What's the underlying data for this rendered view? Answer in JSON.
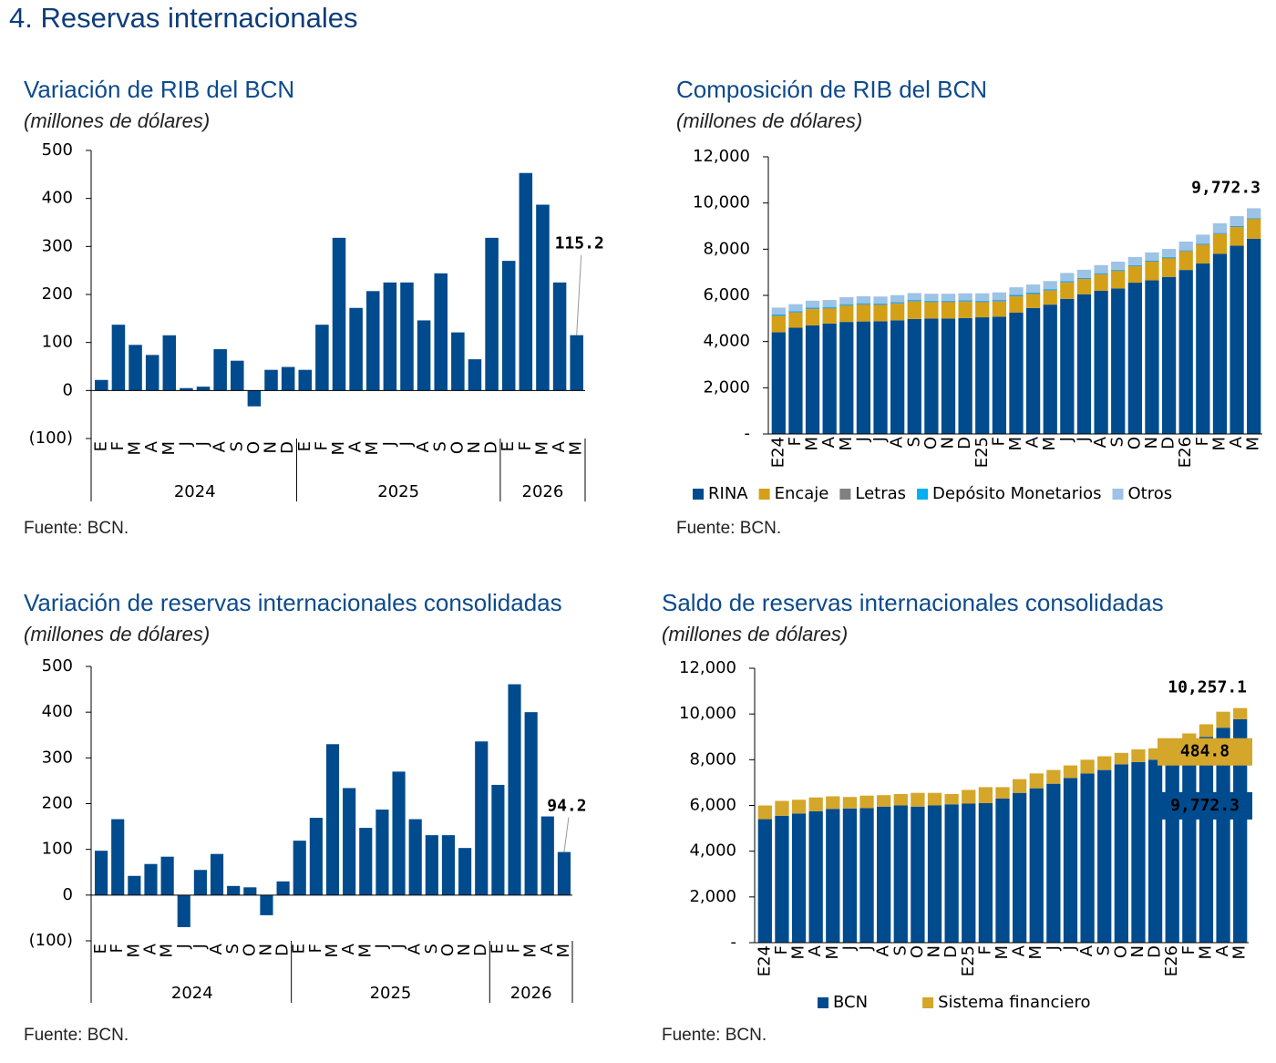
{
  "page_title": "4.  Reservas internacionales",
  "chart_data": [
    {
      "type": "bar",
      "title": "Variación de RIB del BCN",
      "subtitle": "(millones de dólares)",
      "source": "Fuente: BCN.",
      "categories": [
        "E",
        "F",
        "M",
        "A",
        "M",
        "J",
        "J",
        "A",
        "S",
        "O",
        "N",
        "D",
        "E",
        "F",
        "M",
        "A",
        "M",
        "J",
        "J",
        "A",
        "S",
        "O",
        "N",
        "D",
        "E",
        "F",
        "M",
        "A",
        "M"
      ],
      "groups": [
        {
          "label": "2024",
          "size": 12
        },
        {
          "label": "2025",
          "size": 12
        },
        {
          "label": "2026",
          "size": 5
        }
      ],
      "values": [
        22,
        137,
        95,
        74,
        115,
        5,
        8,
        86,
        62,
        -33,
        43,
        49,
        43,
        137,
        318,
        172,
        207,
        225,
        225,
        146,
        244,
        121,
        65,
        318,
        270,
        453,
        387,
        225,
        115.2
      ],
      "value_labels": [
        null,
        null,
        null,
        null,
        null,
        null,
        null,
        null,
        null,
        null,
        null,
        null,
        null,
        null,
        null,
        null,
        null,
        null,
        null,
        null,
        null,
        null,
        null,
        null,
        null,
        null,
        null,
        null,
        "115.2"
      ],
      "color": "#004b8d",
      "ylim": [
        -100,
        500
      ],
      "yticks": [
        {
          "value": -100,
          "label": "(100)"
        },
        0,
        100,
        200,
        300,
        400,
        500
      ]
    },
    {
      "type": "stacked_bar",
      "title": "Composición de RIB del BCN",
      "subtitle": "(millones de dólares)",
      "source": "Fuente: BCN.",
      "categories": [
        "E24",
        "F",
        "M",
        "A",
        "M",
        "J",
        "J",
        "A",
        "S",
        "O",
        "N",
        "D",
        "E25",
        "F",
        "M",
        "A",
        "M",
        "J",
        "J",
        "A",
        "S",
        "O",
        "N",
        "D",
        "E26",
        "F",
        "M",
        "A",
        "M"
      ],
      "series": [
        {
          "name": "RINA",
          "color": "#004b8d",
          "values": [
            4400,
            4600,
            4700,
            4780,
            4850,
            4870,
            4880,
            4920,
            4980,
            5000,
            5000,
            5020,
            5050,
            5080,
            5250,
            5450,
            5600,
            5850,
            6050,
            6200,
            6300,
            6550,
            6650,
            6800,
            7100,
            7380,
            7800,
            8150,
            8450
          ]
        },
        {
          "name": "Encaje",
          "color": "#d4a017",
          "values": [
            700,
            650,
            700,
            650,
            700,
            720,
            700,
            720,
            750,
            700,
            700,
            700,
            650,
            650,
            700,
            600,
            600,
            700,
            650,
            700,
            750,
            700,
            800,
            800,
            800,
            800,
            850,
            800,
            850
          ]
        },
        {
          "name": "Letras",
          "color": "#808080",
          "values": [
            30,
            30,
            30,
            30,
            30,
            30,
            30,
            30,
            30,
            30,
            30,
            30,
            30,
            30,
            30,
            30,
            30,
            30,
            30,
            30,
            30,
            30,
            30,
            30,
            30,
            30,
            30,
            30,
            30
          ]
        },
        {
          "name": "Depósito Monetarios",
          "color": "#00b0f0",
          "values": [
            40,
            40,
            40,
            40,
            40,
            40,
            40,
            40,
            40,
            40,
            40,
            40,
            40,
            40,
            40,
            40,
            40,
            40,
            30,
            30,
            30,
            30,
            30,
            30,
            20,
            20,
            20,
            20,
            20
          ]
        },
        {
          "name": "Otros",
          "color": "#9dc3e6",
          "values": [
            300,
            300,
            300,
            300,
            300,
            300,
            300,
            300,
            300,
            300,
            300,
            300,
            320,
            330,
            330,
            350,
            350,
            350,
            350,
            350,
            350,
            350,
            350,
            350,
            380,
            400,
            420,
            430,
            422.3
          ]
        }
      ],
      "total_label": "9,772.3",
      "ylim": [
        0,
        12000
      ],
      "yticks": [
        {
          "value": 0,
          "label": "-"
        },
        {
          "value": 2000,
          "label": "2,000"
        },
        {
          "value": 4000,
          "label": "4,000"
        },
        {
          "value": 6000,
          "label": "6,000"
        },
        {
          "value": 8000,
          "label": "8,000"
        },
        {
          "value": 10000,
          "label": "10,000"
        },
        {
          "value": 12000,
          "label": "12,000"
        }
      ]
    },
    {
      "type": "bar",
      "title": "Variación de reservas internacionales consolidadas",
      "subtitle": "(millones de dólares)",
      "source": "Fuente: BCN.",
      "categories": [
        "E",
        "F",
        "M",
        "A",
        "M",
        "J",
        "J",
        "A",
        "S",
        "O",
        "N",
        "D",
        "E",
        "F",
        "M",
        "A",
        "M",
        "J",
        "J",
        "A",
        "S",
        "O",
        "N",
        "D",
        "E",
        "F",
        "M",
        "A",
        "M"
      ],
      "groups": [
        {
          "label": "2024",
          "size": 12
        },
        {
          "label": "2025",
          "size": 12
        },
        {
          "label": "2026",
          "size": 5
        }
      ],
      "values": [
        97,
        166,
        42,
        68,
        84,
        -70,
        55,
        90,
        20,
        17,
        -44,
        30,
        119,
        169,
        330,
        234,
        147,
        187,
        270,
        166,
        131,
        131,
        103,
        336,
        241,
        461,
        400,
        172,
        94.2
      ],
      "value_labels": [
        null,
        null,
        null,
        null,
        null,
        null,
        null,
        null,
        null,
        null,
        null,
        null,
        null,
        null,
        null,
        null,
        null,
        null,
        null,
        null,
        null,
        null,
        null,
        null,
        null,
        null,
        null,
        null,
        "94.2"
      ],
      "color": "#004b8d",
      "ylim": [
        -100,
        500
      ],
      "yticks": [
        {
          "value": -100,
          "label": "(100)"
        },
        0,
        100,
        200,
        300,
        400,
        500
      ]
    },
    {
      "type": "stacked_bar",
      "title": "Saldo de reservas internacionales consolidadas",
      "subtitle": "(millones de dólares)",
      "source": "Fuente: BCN.",
      "categories": [
        "E24",
        "F",
        "M",
        "A",
        "M",
        "J",
        "J",
        "A",
        "S",
        "O",
        "N",
        "D",
        "E25",
        "F",
        "M",
        "A",
        "M",
        "J",
        "J",
        "A",
        "S",
        "O",
        "N",
        "D",
        "E26",
        "F",
        "M",
        "A",
        "M"
      ],
      "series": [
        {
          "name": "BCN",
          "color": "#004b8d",
          "values": [
            5400,
            5550,
            5650,
            5750,
            5850,
            5870,
            5880,
            5950,
            6000,
            5950,
            6000,
            6050,
            6080,
            6100,
            6300,
            6550,
            6750,
            6950,
            7200,
            7400,
            7550,
            7800,
            7900,
            8000,
            8300,
            8650,
            9000,
            9400,
            9772.3
          ],
          "value_labels": [
            null,
            null,
            null,
            null,
            null,
            null,
            null,
            null,
            null,
            null,
            null,
            null,
            null,
            null,
            null,
            null,
            null,
            null,
            null,
            null,
            null,
            null,
            null,
            null,
            null,
            null,
            null,
            null,
            "9,772.3"
          ]
        },
        {
          "name": "Sistema financiero",
          "color": "#d4a62a",
          "values": [
            600,
            650,
            600,
            600,
            550,
            500,
            550,
            500,
            500,
            600,
            550,
            450,
            600,
            700,
            500,
            600,
            650,
            600,
            550,
            600,
            600,
            500,
            550,
            500,
            600,
            500,
            550,
            700,
            484.8
          ],
          "value_labels": [
            null,
            null,
            null,
            null,
            null,
            null,
            null,
            null,
            null,
            null,
            null,
            null,
            null,
            null,
            null,
            null,
            null,
            null,
            null,
            null,
            null,
            null,
            null,
            null,
            null,
            null,
            null,
            null,
            "484.8"
          ]
        }
      ],
      "total_label": "10,257.1",
      "ylim": [
        0,
        12000
      ],
      "yticks": [
        {
          "value": 0,
          "label": "-"
        },
        {
          "value": 2000,
          "label": "2,000"
        },
        {
          "value": 4000,
          "label": "4,000"
        },
        {
          "value": 6000,
          "label": "6,000"
        },
        {
          "value": 8000,
          "label": "8,000"
        },
        {
          "value": 10000,
          "label": "10,000"
        },
        {
          "value": 12000,
          "label": "12,000"
        }
      ]
    }
  ]
}
